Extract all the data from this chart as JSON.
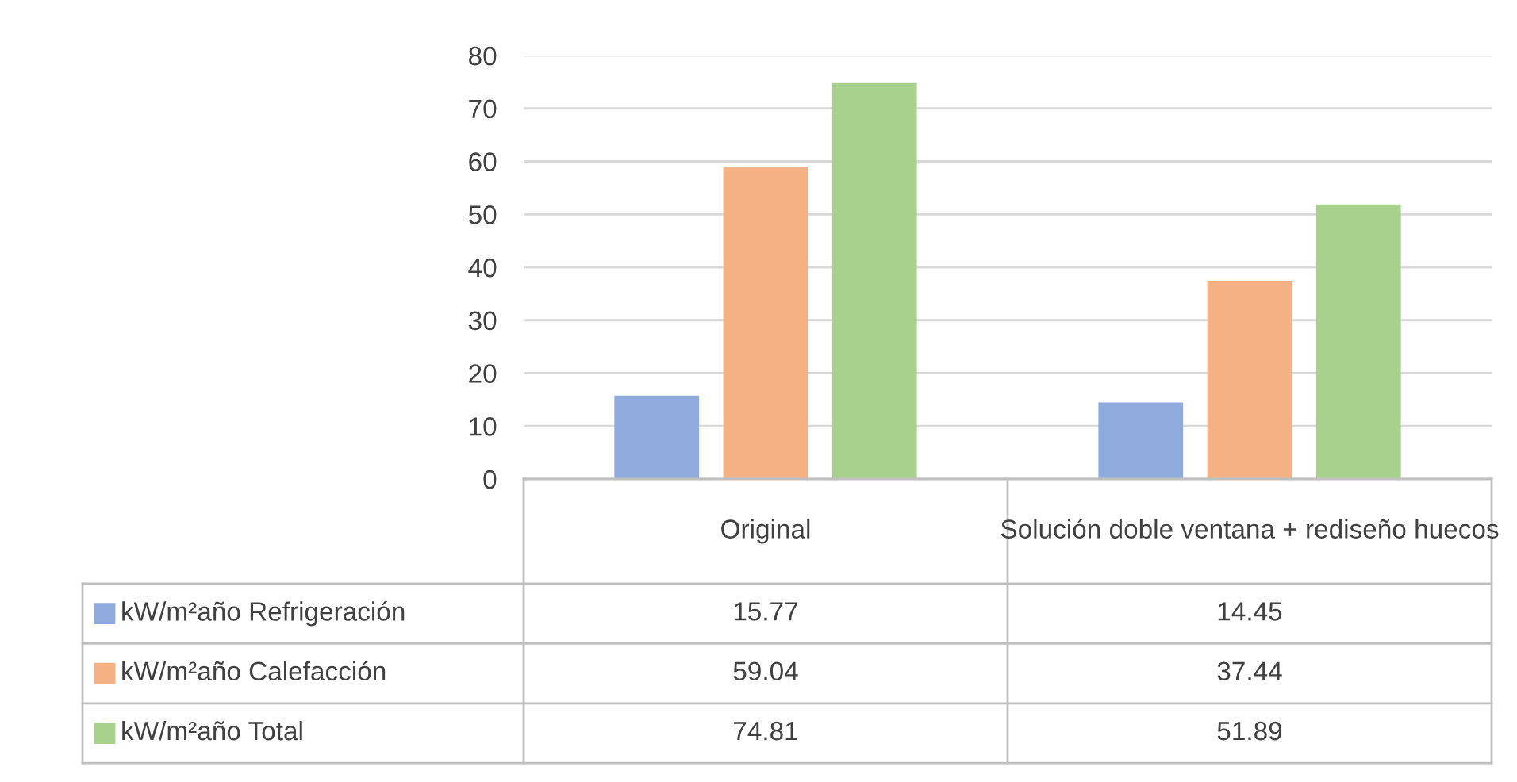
{
  "chart_data": {
    "type": "bar",
    "categories": [
      "Original",
      "Solución doble ventana + rediseño huecos"
    ],
    "series": [
      {
        "name": "kW/m²año Refrigeración",
        "color": "#8faadc",
        "values": [
          15.77,
          14.45
        ]
      },
      {
        "name": "kW/m²año Calefacción",
        "color": "#f4b183",
        "values": [
          59.04,
          37.44
        ]
      },
      {
        "name": "kW/m²año Total",
        "color": "#a9d18e",
        "values": [
          74.81,
          51.89
        ]
      }
    ],
    "ylim": [
      0,
      80
    ],
    "yticks": [
      0,
      10,
      20,
      30,
      40,
      50,
      60,
      70,
      80
    ],
    "grid": "y",
    "legend": "bottom",
    "data_labels": true
  }
}
